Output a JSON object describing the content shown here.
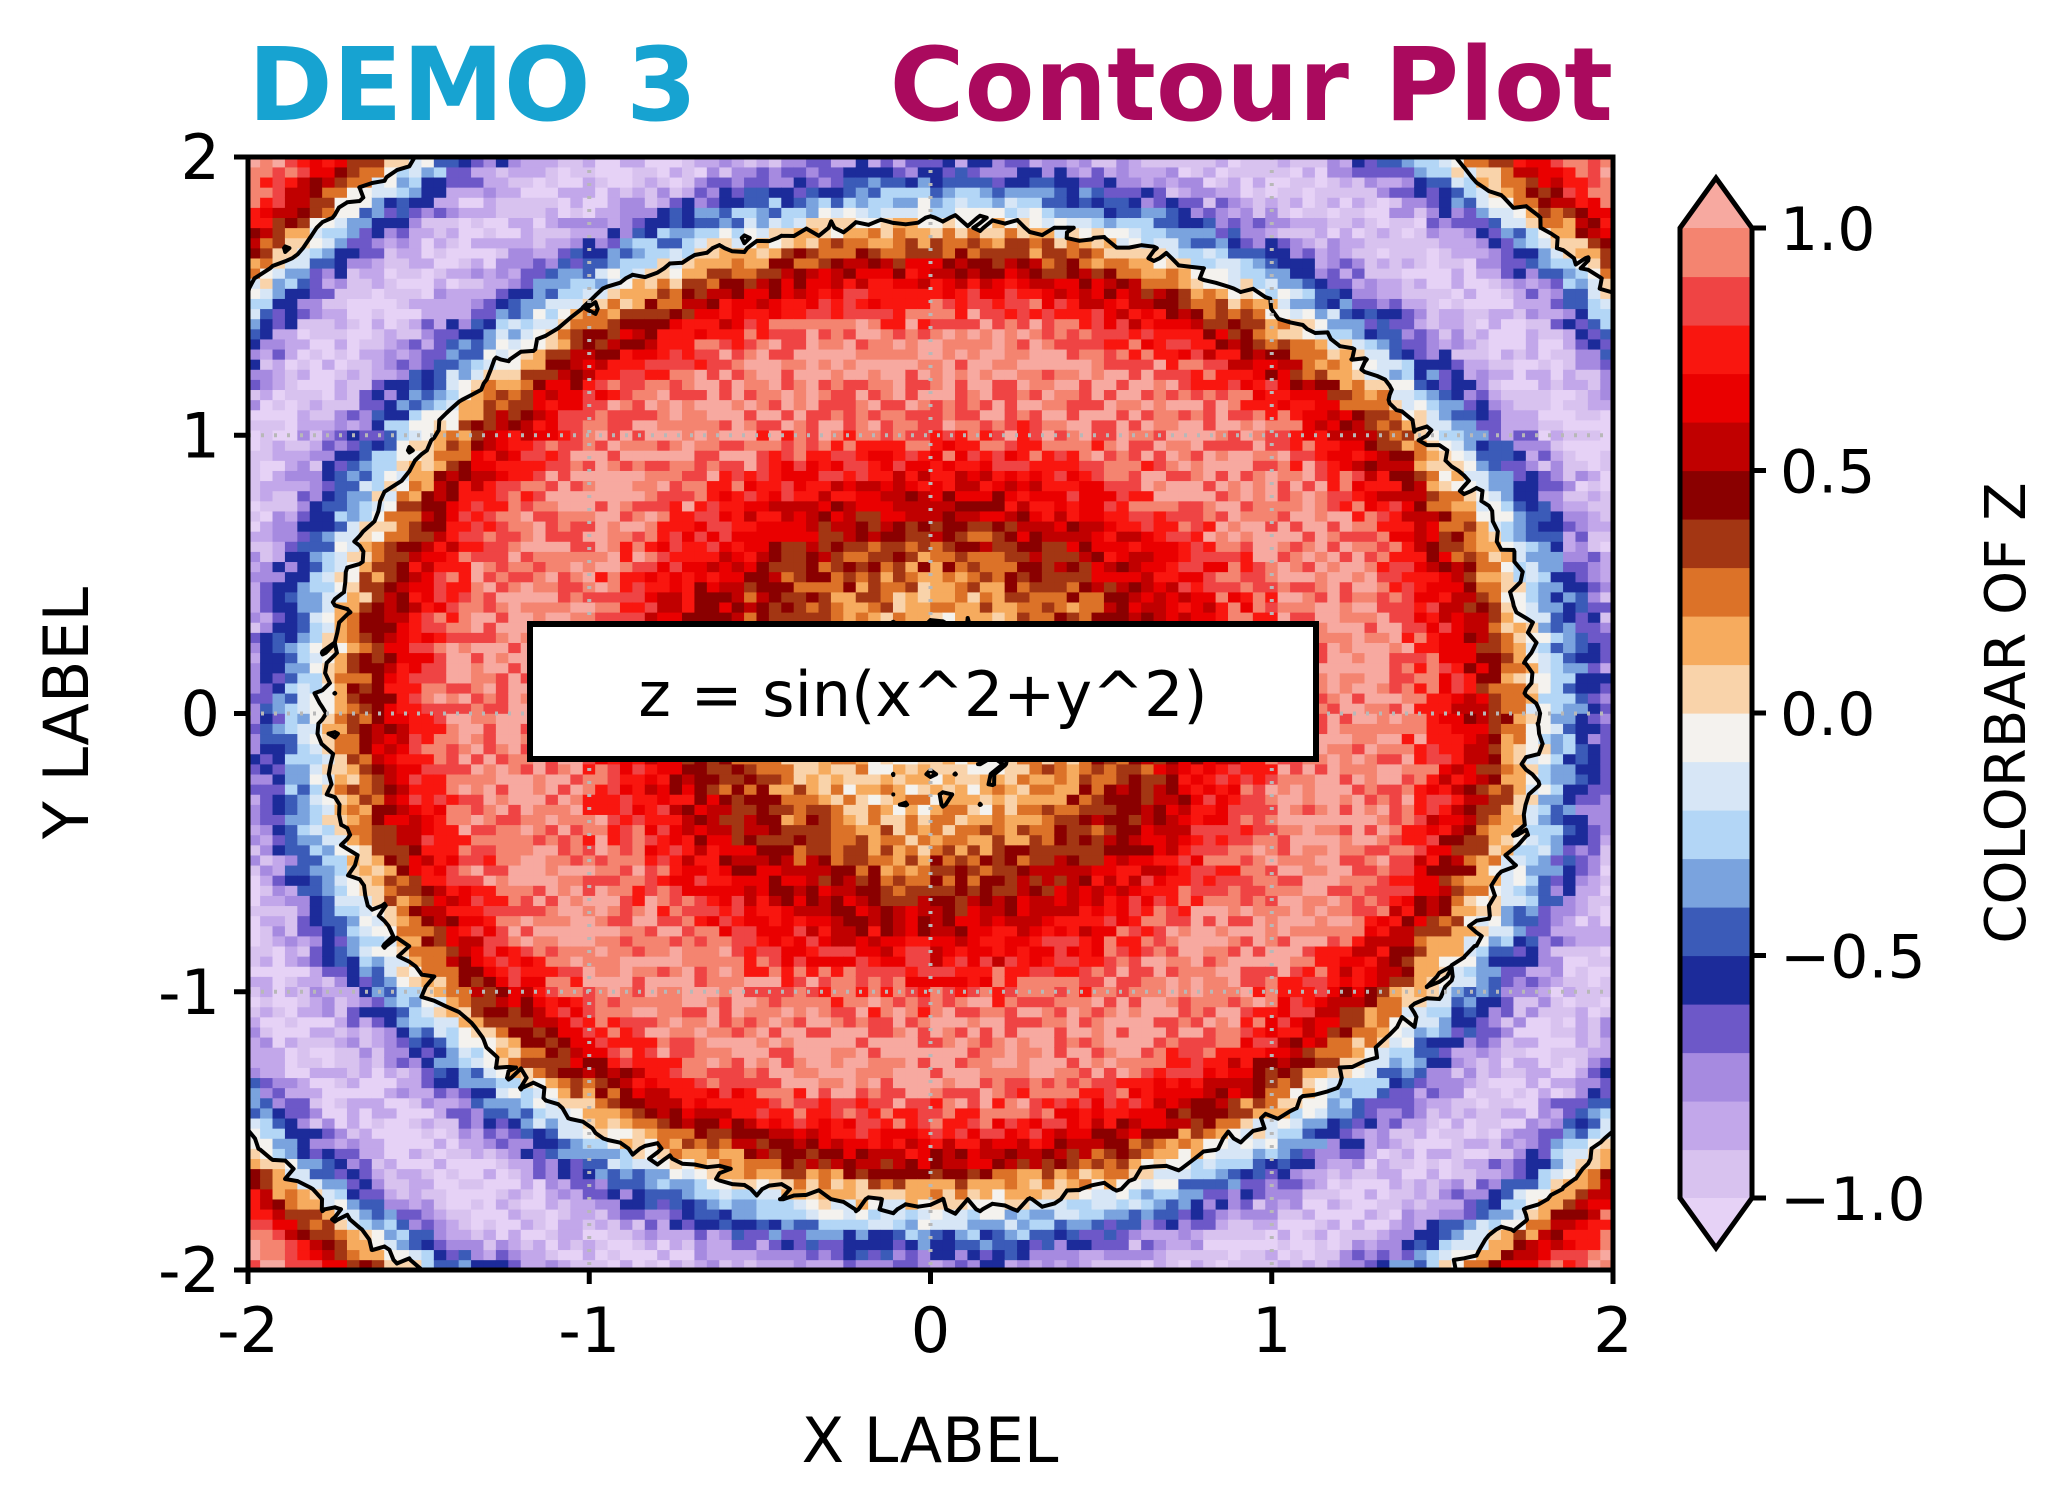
{
  "title": {
    "left": "DEMO 3",
    "right": "Contour Plot",
    "left_color": "#17a3d1",
    "right_color": "#aa0a5e"
  },
  "annotation": "z = sin(x^2+y^2)",
  "chart_data": {
    "type": "heatmap",
    "subtype": "filled-contour",
    "function": "z = sin(x^2+y^2)",
    "title": "DEMO 3   Contour Plot",
    "xlabel": "X LABEL",
    "ylabel": "Y LABEL",
    "xlim": [
      -2,
      2
    ],
    "ylim": [
      -2,
      2
    ],
    "xticks": [
      -2,
      -1,
      0,
      1,
      2
    ],
    "yticks": [
      -2,
      -1,
      0,
      1,
      2
    ],
    "xtick_labels": [
      "-2",
      "-1",
      "0",
      "1",
      "2"
    ],
    "ytick_labels": [
      "-2",
      "-1",
      "0",
      "1",
      "2"
    ],
    "grid": true,
    "grid_style": "dotted",
    "contour_line_level": 0.0,
    "colorbar": {
      "label": "COLORBAR OF Z",
      "range": [
        -1.0,
        1.0
      ],
      "extend": "both",
      "ticks": [
        1.0,
        0.5,
        0.0,
        -0.5,
        -1.0
      ],
      "tick_labels": [
        "1.0",
        "0.5",
        "0.0",
        "−0.5",
        "−1.0"
      ],
      "levels": [
        -1.0,
        -0.9,
        -0.8,
        -0.7,
        -0.6,
        -0.5,
        -0.4,
        -0.3,
        -0.2,
        -0.1,
        0.0,
        0.1,
        0.2,
        0.3,
        0.4,
        0.5,
        0.6,
        0.7,
        0.8,
        0.9,
        1.0
      ],
      "colors": [
        "#d8c2ef",
        "#c2a7ea",
        "#a68ae0",
        "#6d58c8",
        "#1c2b9a",
        "#3b5bb8",
        "#7aa3de",
        "#b3d6f6",
        "#d7e6f6",
        "#f4f2ee",
        "#f9d3aa",
        "#f6ab5e",
        "#dc7228",
        "#a33613",
        "#8a0000",
        "#c00000",
        "#ea0000",
        "#f9160f",
        "#ef4444",
        "#f48470"
      ],
      "under_color": "#e6d2f6",
      "over_color": "#f7a9a0"
    }
  }
}
